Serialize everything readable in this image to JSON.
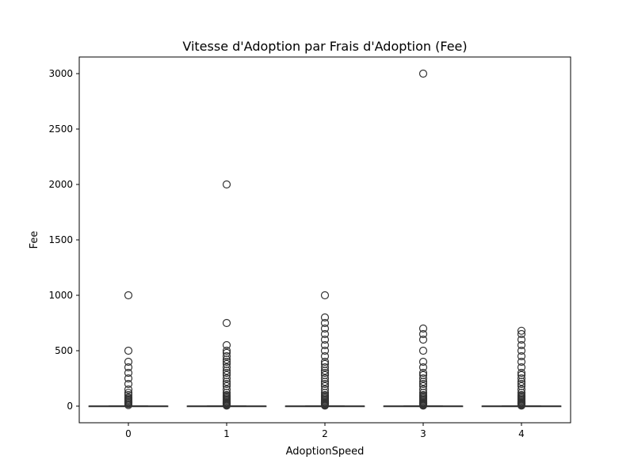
{
  "chart_data": {
    "type": "box",
    "title": "Vitesse d'Adoption par Frais d'Adoption (Fee)",
    "xlabel": "AdoptionSpeed",
    "ylabel": "Fee",
    "categories": [
      "0",
      "1",
      "2",
      "3",
      "4"
    ],
    "yticks": [
      0,
      500,
      1000,
      1500,
      2000,
      2500,
      3000
    ],
    "ylim": [
      -150,
      3150
    ],
    "grid": false,
    "legend": "none",
    "color": "#333333",
    "boxes": [
      {
        "category": "0",
        "q1": 0,
        "median": 0,
        "q3": 0,
        "whisker_low": 0,
        "whisker_high": 0,
        "outliers": [
          10,
          20,
          30,
          40,
          50,
          60,
          70,
          80,
          100,
          120,
          150,
          200,
          250,
          300,
          350,
          400,
          500,
          1000
        ]
      },
      {
        "category": "1",
        "q1": 0,
        "median": 0,
        "q3": 0,
        "whisker_low": 0,
        "whisker_high": 0,
        "outliers": [
          5,
          10,
          15,
          20,
          25,
          30,
          40,
          50,
          60,
          70,
          80,
          90,
          100,
          120,
          150,
          180,
          200,
          220,
          250,
          280,
          300,
          320,
          350,
          380,
          400,
          420,
          450,
          480,
          500,
          550,
          750,
          2000
        ]
      },
      {
        "category": "2",
        "q1": 0,
        "median": 0,
        "q3": 0,
        "whisker_low": 0,
        "whisker_high": 0,
        "outliers": [
          5,
          10,
          15,
          20,
          25,
          30,
          40,
          50,
          60,
          70,
          80,
          90,
          100,
          120,
          150,
          180,
          200,
          220,
          250,
          280,
          300,
          320,
          350,
          380,
          400,
          450,
          500,
          550,
          600,
          650,
          700,
          750,
          800,
          1000
        ]
      },
      {
        "category": "3",
        "q1": 0,
        "median": 0,
        "q3": 0,
        "whisker_low": 0,
        "whisker_high": 0,
        "outliers": [
          5,
          10,
          15,
          20,
          25,
          30,
          40,
          50,
          60,
          70,
          80,
          90,
          100,
          120,
          150,
          180,
          200,
          220,
          250,
          280,
          300,
          350,
          400,
          500,
          600,
          650,
          700,
          3000
        ]
      },
      {
        "category": "4",
        "q1": 0,
        "median": 0,
        "q3": 0,
        "whisker_low": 0,
        "whisker_high": 0,
        "outliers": [
          5,
          10,
          15,
          20,
          25,
          30,
          40,
          50,
          60,
          70,
          80,
          90,
          100,
          120,
          150,
          180,
          200,
          220,
          250,
          280,
          300,
          350,
          400,
          450,
          500,
          550,
          600,
          650,
          680
        ]
      }
    ]
  }
}
